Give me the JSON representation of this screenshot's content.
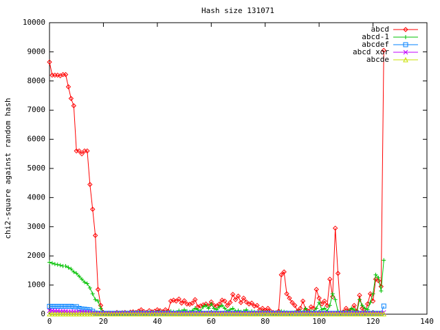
{
  "chart_data": {
    "type": "line",
    "title": "Hash size 131071",
    "y_label": "chi2-square against random hash",
    "x": [
      0,
      1,
      2,
      3,
      4,
      5,
      6,
      7,
      8,
      9,
      10,
      11,
      12,
      13,
      14,
      15,
      16,
      17,
      18,
      19,
      20,
      21,
      22,
      23,
      24,
      25,
      26,
      27,
      28,
      29,
      30,
      31,
      32,
      33,
      34,
      35,
      36,
      37,
      38,
      39,
      40,
      41,
      42,
      43,
      44,
      45,
      46,
      47,
      48,
      49,
      50,
      51,
      52,
      53,
      54,
      55,
      56,
      57,
      58,
      59,
      60,
      61,
      62,
      63,
      64,
      65,
      66,
      67,
      68,
      69,
      70,
      71,
      72,
      73,
      74,
      75,
      76,
      77,
      78,
      79,
      80,
      81,
      82,
      83,
      84,
      85,
      86,
      87,
      88,
      89,
      90,
      91,
      92,
      93,
      94,
      95,
      96,
      97,
      98,
      99,
      100,
      101,
      102,
      103,
      104,
      105,
      106,
      107,
      108,
      109,
      110,
      111,
      112,
      113,
      114,
      115,
      116,
      117,
      118,
      119,
      120,
      121,
      122,
      123,
      124
    ],
    "series": [
      {
        "name": "abcd",
        "color": "#ff0000",
        "marker": "diamond",
        "values": [
          8650,
          8200,
          8200,
          8200,
          8180,
          8220,
          8220,
          7800,
          7400,
          7150,
          5600,
          5600,
          5500,
          5600,
          5600,
          4450,
          3600,
          2700,
          850,
          300,
          50,
          30,
          40,
          20,
          30,
          60,
          40,
          50,
          60,
          40,
          70,
          80,
          60,
          100,
          150,
          90,
          60,
          120,
          80,
          100,
          150,
          120,
          80,
          150,
          100,
          450,
          480,
          450,
          520,
          380,
          460,
          350,
          340,
          380,
          500,
          250,
          280,
          320,
          350,
          280,
          420,
          300,
          280,
          350,
          480,
          450,
          300,
          400,
          680,
          500,
          620,
          400,
          550,
          420,
          350,
          380,
          280,
          300,
          150,
          200,
          120,
          200,
          100,
          60,
          50,
          100,
          1350,
          1450,
          700,
          550,
          400,
          300,
          100,
          200,
          450,
          150,
          100,
          250,
          200,
          850,
          550,
          350,
          450,
          300,
          1200,
          600,
          2950,
          1400,
          50,
          80,
          200,
          100,
          150,
          300,
          100,
          650,
          200,
          50,
          350,
          700,
          450,
          1200,
          1150,
          950,
          9050
        ]
      },
      {
        "name": "abcd-1",
        "color": "#00c000",
        "marker": "plus",
        "values": [
          1780,
          1750,
          1720,
          1700,
          1680,
          1650,
          1650,
          1600,
          1550,
          1450,
          1400,
          1300,
          1200,
          1100,
          1050,
          900,
          700,
          500,
          450,
          200,
          50,
          20,
          20,
          10,
          20,
          30,
          20,
          30,
          20,
          40,
          30,
          50,
          40,
          60,
          50,
          30,
          40,
          60,
          50,
          40,
          60,
          80,
          50,
          40,
          60,
          100,
          80,
          60,
          120,
          100,
          150,
          100,
          80,
          120,
          200,
          150,
          100,
          250,
          300,
          200,
          350,
          200,
          150,
          250,
          300,
          200,
          100,
          150,
          200,
          100,
          120,
          80,
          100,
          150,
          60,
          100,
          80,
          50,
          60,
          80,
          40,
          60,
          50,
          30,
          40,
          50,
          100,
          80,
          60,
          40,
          50,
          60,
          80,
          100,
          60,
          200,
          50,
          100,
          80,
          200,
          400,
          150,
          200,
          100,
          300,
          700,
          500,
          100,
          50,
          60,
          80,
          100,
          200,
          150,
          50,
          500,
          300,
          200,
          150,
          400,
          700,
          1350,
          1250,
          800,
          1850
        ]
      },
      {
        "name": "abcdef",
        "color": "#0080ff",
        "marker": "square",
        "values": [
          270,
          270,
          270,
          270,
          270,
          270,
          270,
          270,
          270,
          260,
          260,
          200,
          180,
          170,
          160,
          150,
          100,
          40,
          30,
          30,
          30,
          30,
          30,
          30,
          30,
          30,
          30,
          30,
          30,
          30,
          30,
          30,
          30,
          30,
          30,
          30,
          30,
          30,
          30,
          30,
          30,
          30,
          30,
          30,
          30,
          30,
          30,
          30,
          30,
          30,
          30,
          30,
          30,
          30,
          30,
          30,
          30,
          30,
          30,
          30,
          30,
          30,
          30,
          30,
          30,
          30,
          30,
          30,
          30,
          30,
          30,
          30,
          30,
          30,
          30,
          30,
          30,
          30,
          30,
          30,
          30,
          30,
          30,
          30,
          30,
          30,
          30,
          30,
          30,
          30,
          30,
          30,
          30,
          30,
          30,
          30,
          30,
          30,
          30,
          30,
          30,
          30,
          30,
          30,
          30,
          30,
          30,
          30,
          30,
          30,
          30,
          30,
          30,
          30,
          30,
          30,
          30,
          30,
          30,
          30,
          30,
          30,
          30,
          30,
          280
        ]
      },
      {
        "name": "abcd xor",
        "color": "#c000ff",
        "marker": "cross",
        "values": [
          120,
          120,
          110,
          110,
          100,
          100,
          100,
          90,
          90,
          90,
          80,
          80,
          80,
          70,
          70,
          60,
          40,
          20,
          20,
          20,
          20,
          20,
          20,
          20,
          20,
          20,
          20,
          20,
          20,
          20,
          20,
          20,
          20,
          20,
          20,
          20,
          20,
          20,
          20,
          20,
          20,
          20,
          20,
          20,
          20,
          20,
          20,
          20,
          20,
          20,
          20,
          20,
          20,
          20,
          20,
          20,
          20,
          20,
          20,
          20,
          20,
          20,
          20,
          20,
          20,
          20,
          20,
          20,
          20,
          20,
          20,
          20,
          20,
          20,
          20,
          20,
          20,
          20,
          20,
          20,
          20,
          20,
          20,
          20,
          20,
          20,
          20,
          20,
          20,
          20,
          20,
          20,
          20,
          20,
          20,
          20,
          20,
          20,
          20,
          20,
          20,
          20,
          20,
          20,
          20,
          20,
          20,
          20,
          20,
          20,
          20,
          20,
          20,
          20,
          20,
          20,
          20,
          20,
          20,
          20,
          20,
          20,
          20,
          20,
          60
        ]
      },
      {
        "name": "abcde",
        "color": "#c8e000",
        "marker": "triangle",
        "values": [
          10,
          10,
          10,
          10,
          10,
          10,
          10,
          10,
          10,
          10,
          10,
          10,
          10,
          10,
          10,
          10,
          10,
          10,
          10,
          10,
          10,
          10,
          10,
          10,
          10,
          10,
          10,
          10,
          10,
          10,
          10,
          10,
          10,
          10,
          10,
          10,
          10,
          10,
          10,
          10,
          10,
          10,
          10,
          10,
          10,
          10,
          10,
          10,
          10,
          10,
          10,
          10,
          10,
          10,
          10,
          10,
          10,
          10,
          10,
          10,
          10,
          10,
          10,
          10,
          10,
          10,
          10,
          10,
          10,
          10,
          10,
          10,
          10,
          10,
          10,
          10,
          10,
          10,
          10,
          10,
          10,
          10,
          10,
          10,
          10,
          10,
          10,
          10,
          10,
          10,
          10,
          10,
          10,
          10,
          10,
          10,
          10,
          10,
          10,
          10,
          10,
          10,
          10,
          10,
          10,
          10,
          10,
          10,
          10,
          10,
          10,
          10,
          10,
          10,
          10,
          10,
          10,
          10,
          10,
          10,
          10,
          10,
          10,
          10,
          10
        ]
      }
    ],
    "xlim": [
      0,
      140
    ],
    "xticks": [
      0,
      20,
      40,
      60,
      80,
      100,
      120,
      140
    ],
    "ylim": [
      0,
      10000
    ],
    "yticks": [
      0,
      1000,
      2000,
      3000,
      4000,
      5000,
      6000,
      7000,
      8000,
      9000,
      10000
    ],
    "legend": "top-right"
  }
}
